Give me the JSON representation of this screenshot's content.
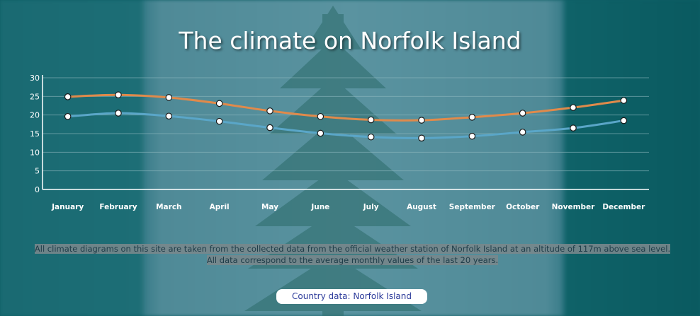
{
  "page": {
    "title": "The climate on Norfolk Island",
    "description": "All climate diagrams on this site are taken from the collected data from the official weather station of Norfolk Island at an altitude of 117m above sea level. All data correspond to the average monthly values of the last 20 years.",
    "country_button": "Country data: Norfolk Island"
  },
  "colors": {
    "series_max": "#e08a4b",
    "series_min": "#5aa6c8",
    "axis": "#ffffff",
    "gridline": "#8fb9bf"
  },
  "chart_data": {
    "type": "line",
    "categories": [
      "January",
      "February",
      "March",
      "April",
      "May",
      "June",
      "July",
      "August",
      "September",
      "October",
      "November",
      "December"
    ],
    "series": [
      {
        "values": [
          24.9,
          25.4,
          24.7,
          23.1,
          21.1,
          19.6,
          18.7,
          18.6,
          19.4,
          20.5,
          22.0,
          23.9
        ],
        "color": "#e08a4b"
      },
      {
        "values": [
          19.6,
          20.5,
          19.7,
          18.3,
          16.6,
          15.1,
          14.1,
          13.8,
          14.3,
          15.4,
          16.5,
          18.5
        ],
        "color": "#5aa6c8"
      }
    ],
    "yticks": [
      0,
      5,
      10,
      15,
      20,
      25,
      30
    ],
    "ylim": [
      0,
      30
    ],
    "grid": true,
    "legend": "none"
  }
}
